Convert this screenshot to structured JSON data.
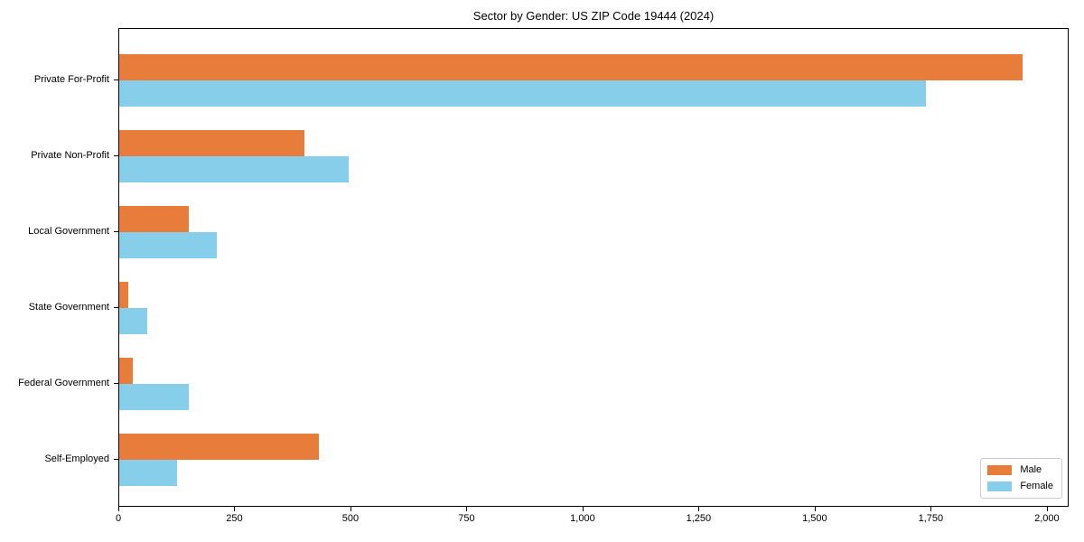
{
  "chart_data": {
    "type": "bar",
    "orientation": "horizontal",
    "title": "Sector by Gender: US ZIP Code 19444 (2024)",
    "categories": [
      "Private For-Profit",
      "Private Non-Profit",
      "Local Government",
      "State Government",
      "Federal Government",
      "Self-Employed"
    ],
    "series": [
      {
        "name": "Male",
        "color": "#E87D3B",
        "values": [
          1950,
          400,
          150,
          20,
          30,
          430
        ]
      },
      {
        "name": "Female",
        "color": "#87CEEB",
        "values": [
          1740,
          495,
          210,
          60,
          150,
          125
        ]
      }
    ],
    "xlabel": "",
    "ylabel": "",
    "xlim": [
      0,
      2047
    ],
    "x_ticks": [
      0,
      250,
      500,
      750,
      1000,
      1250,
      1500,
      1750,
      2000
    ],
    "x_tick_labels": [
      "0",
      "250",
      "500",
      "750",
      "1,000",
      "1,250",
      "1,500",
      "1,750",
      "2,000"
    ],
    "grid": false,
    "legend_position": "lower right",
    "background": "#ffffff"
  }
}
